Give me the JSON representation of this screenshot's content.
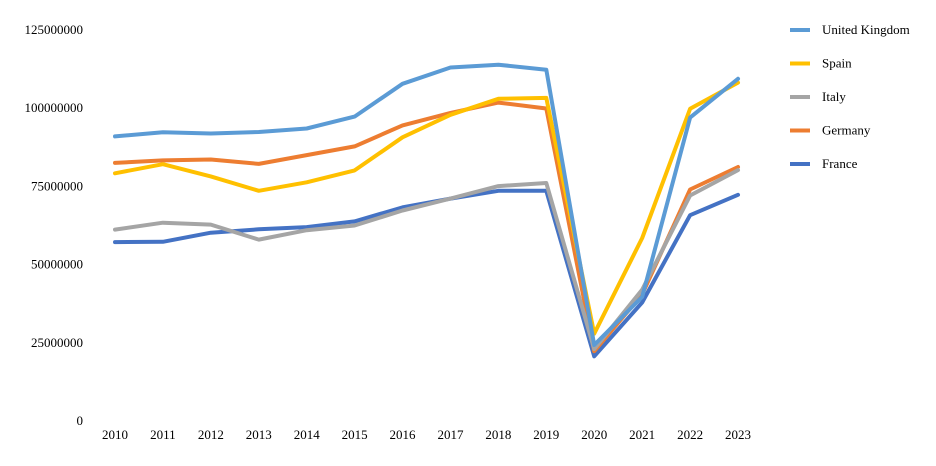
{
  "chart_data": {
    "type": "line",
    "title": "",
    "xlabel": "",
    "ylabel": "",
    "x": [
      "2010",
      "2011",
      "2012",
      "2013",
      "2014",
      "2015",
      "2016",
      "2017",
      "2018",
      "2019",
      "2020",
      "2021",
      "2022",
      "2023"
    ],
    "ylim": [
      0,
      125000000
    ],
    "yticks": [
      0,
      25000000,
      50000000,
      75000000,
      100000000,
      125000000
    ],
    "ytick_labels": [
      "0",
      "25000000",
      "50000000",
      "75000000",
      "100000000",
      "125000000"
    ],
    "grid": false,
    "legend_position": "right",
    "series": [
      {
        "name": "United Kingdom",
        "color": "#5B9BD5",
        "values": [
          91000000,
          92300000,
          91900000,
          92400000,
          93500000,
          97300000,
          107800000,
          113000000,
          113900000,
          112300000,
          24300000,
          39700000,
          97000000,
          109400000
        ]
      },
      {
        "name": "Spain",
        "color": "#FFC000",
        "values": [
          79200000,
          82100000,
          78200000,
          73600000,
          76300000,
          80100000,
          90700000,
          97900000,
          103000000,
          103300000,
          27900000,
          58500000,
          99800000,
          108200000
        ]
      },
      {
        "name": "Italy",
        "color": "#A5A5A5",
        "values": [
          61200000,
          63400000,
          62800000,
          58000000,
          61000000,
          62500000,
          67300000,
          71100000,
          75100000,
          76100000,
          23000000,
          42000000,
          72100000,
          80200000
        ]
      },
      {
        "name": "Germany",
        "color": "#ED7D31",
        "values": [
          82500000,
          83300000,
          83600000,
          82200000,
          85000000,
          87800000,
          94500000,
          98500000,
          101800000,
          99900000,
          22300000,
          40500000,
          74000000,
          81200000
        ]
      },
      {
        "name": "France",
        "color": "#4472C4",
        "values": [
          57200000,
          57300000,
          60200000,
          61300000,
          62000000,
          63800000,
          68300000,
          71100000,
          73600000,
          73600000,
          20700000,
          37900000,
          65800000,
          72300000
        ]
      }
    ]
  }
}
